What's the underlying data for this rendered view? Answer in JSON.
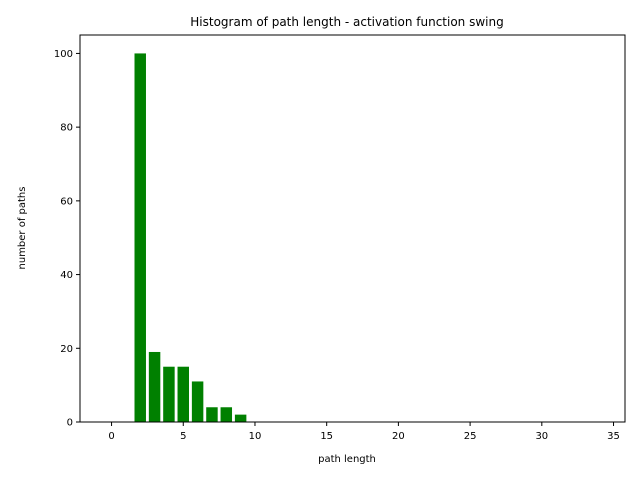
{
  "chart_data": {
    "type": "bar",
    "title": "Histogram of path length - activation function swing",
    "xlabel": "path length",
    "ylabel": "number of paths",
    "xlim": [
      -2.2,
      35.8
    ],
    "ylim": [
      0,
      105
    ],
    "xticks": [
      0,
      5,
      10,
      15,
      20,
      25,
      30,
      35
    ],
    "yticks": [
      0,
      20,
      40,
      60,
      80,
      100
    ],
    "bar_width": 0.8,
    "color": "#008000",
    "grid": false,
    "x": [
      2,
      3,
      4,
      5,
      6,
      7,
      8,
      9
    ],
    "values": [
      100,
      19,
      15,
      15,
      11,
      4,
      4,
      2
    ]
  }
}
